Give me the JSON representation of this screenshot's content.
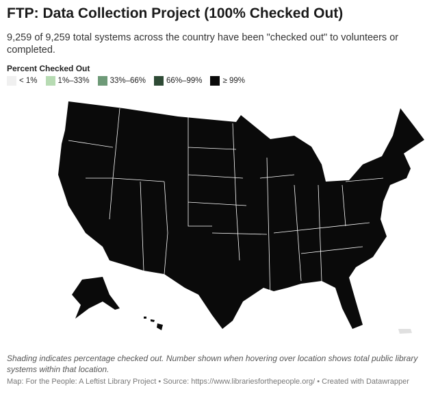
{
  "header": {
    "title": "FTP: Data Collection Project (100% Checked Out)",
    "subtitle": "9,259 of 9,259 total systems across the country have been \"checked out\" to volunteers or completed."
  },
  "legend": {
    "title": "Percent Checked Out",
    "items": [
      {
        "label": "< 1%",
        "color": "#f0f0f0"
      },
      {
        "label": "1%–33%",
        "color": "#b7dbb3"
      },
      {
        "label": "33%–66%",
        "color": "#6e9a78"
      },
      {
        "label": "66%–99%",
        "color": "#2e4a35"
      },
      {
        "label": "≥ 99%",
        "color": "#0a0a0a"
      }
    ]
  },
  "notes": "Shading indicates percentage checked out. Number shown when hovering over location shows total public library systems within that location.",
  "footer": "Map: For the People: A Leftist Library Project • Source: https://www.librariesforthepeople.org/ • Created with Datawrapper"
}
